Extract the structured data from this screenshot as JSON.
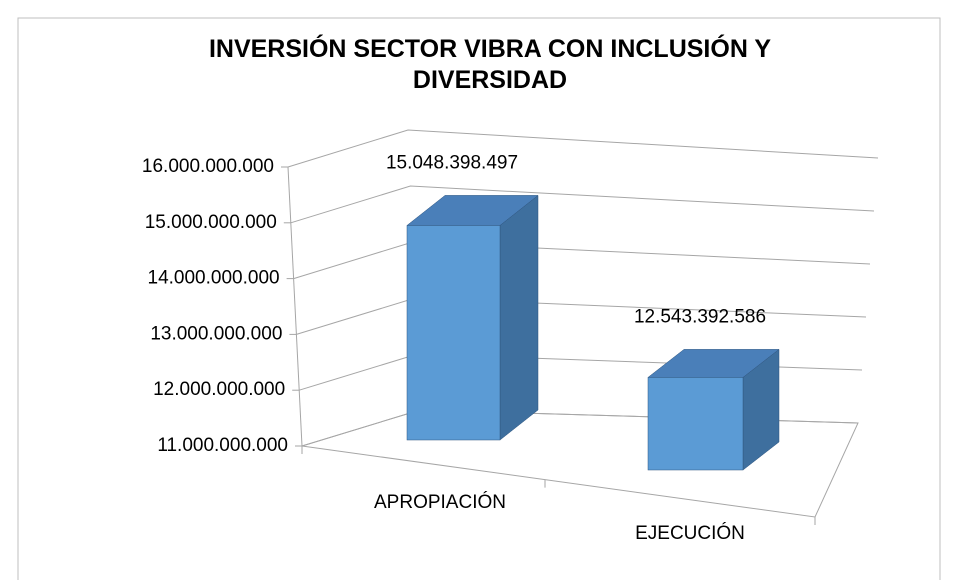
{
  "chart_data": {
    "type": "bar3d",
    "title": "INVERSIÓN SECTOR VIBRA CON INCLUSIÓN Y DIVERSIDAD",
    "categories": [
      "APROPIACIÓN",
      "EJECUCIÓN"
    ],
    "values": [
      15048398497,
      12543392586
    ],
    "value_labels": [
      "15.048.398.497",
      "12.543.392.586"
    ],
    "color": "#5b9bd5",
    "ylim": [
      11000000000,
      16000000000
    ],
    "yticks": [
      {
        "value": 11000000000,
        "label": "11.000.000.000"
      },
      {
        "value": 12000000000,
        "label": "12.000.000.000"
      },
      {
        "value": 13000000000,
        "label": "13.000.000.000"
      },
      {
        "value": 14000000000,
        "label": "14.000.000.000"
      },
      {
        "value": 15000000000,
        "label": "15.000.000.000"
      },
      {
        "value": 16000000000,
        "label": "16.000.000.000"
      }
    ],
    "grid": true
  }
}
